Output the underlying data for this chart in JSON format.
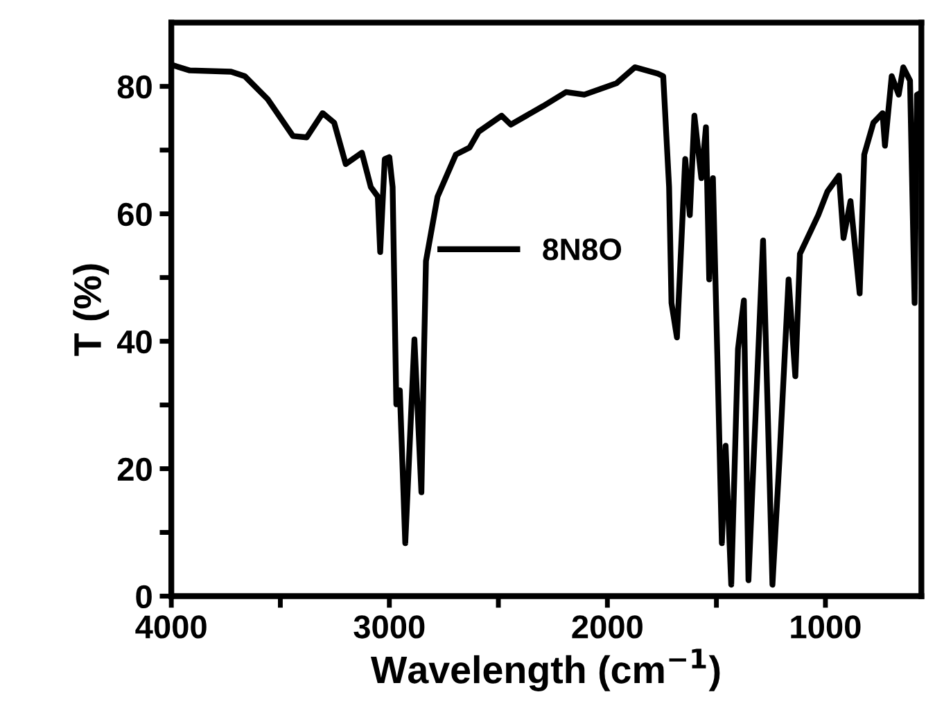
{
  "chart_data": {
    "type": "line",
    "xlabel": "Wavelength (cm$^{−1}$)",
    "ylabel": "T (%)",
    "x": [
      4000,
      3915,
      3726,
      3663,
      3558,
      3442,
      3379,
      3306,
      3253,
      3200,
      3126,
      3085,
      3053,
      3042,
      3021,
      3000,
      2985,
      2968,
      2952,
      2927,
      2885,
      2853,
      2842,
      2832,
      2779,
      2695,
      2632,
      2590,
      2485,
      2443,
      2295,
      2190,
      2106,
      1958,
      1874,
      1769,
      1744,
      1717,
      1706,
      1681,
      1643,
      1622,
      1601,
      1569,
      1548,
      1533,
      1516,
      1496,
      1475,
      1458,
      1432,
      1401,
      1374,
      1353,
      1286,
      1243,
      1211,
      1169,
      1138,
      1117,
      1033,
      991,
      938,
      917,
      885,
      843,
      822,
      780,
      738,
      727,
      696,
      664,
      643,
      612,
      591,
      580,
      562
    ],
    "series": [
      {
        "name": "8N8O",
        "color": "#000000",
        "values": [
          83.4,
          82.5,
          82.3,
          81.6,
          78,
          72.2,
          72.0,
          75.8,
          74.3,
          67.8,
          69.6,
          64.2,
          62.7,
          54.0,
          68.6,
          68.9,
          64.2,
          30.1,
          32.3,
          8.3,
          40.3,
          16.3,
          36.6,
          52.6,
          62.7,
          69.3,
          70.4,
          72.9,
          75.4,
          74.0,
          76.9,
          79.1,
          78.7,
          80.5,
          83.0,
          82.0,
          81.6,
          64.2,
          46.0,
          40.6,
          68.6,
          59.8,
          75.4,
          65.6,
          73.6,
          49.7,
          65.6,
          38,
          8.3,
          23.6,
          1.8,
          38.8,
          46.4,
          2.5,
          55.8,
          1.8,
          21.4,
          49.7,
          34.5,
          53.7,
          59.8,
          63.5,
          66,
          56.2,
          62,
          47.5,
          69.3,
          74.3,
          75.8,
          70.7,
          81.6,
          78.7,
          83.0,
          80.9,
          46,
          78.7,
          79
        ]
      }
    ],
    "xlim": [
      4000,
      560
    ],
    "ylim": [
      0,
      90
    ],
    "xticks": [
      4000,
      {
        "value": 3500,
        "label": null
      },
      3000,
      {
        "value": 2500,
        "label": null
      },
      2000,
      {
        "value": 1500,
        "label": null
      },
      1000
    ],
    "yticks": [
      0,
      {
        "value": 10,
        "label": null
      },
      20,
      {
        "value": 30,
        "label": null
      },
      40,
      {
        "value": 50,
        "label": null
      },
      60,
      {
        "value": 70,
        "label": null
      },
      80
    ],
    "grid": false,
    "legend": "center",
    "marker": "none",
    "line_style": "solid"
  }
}
